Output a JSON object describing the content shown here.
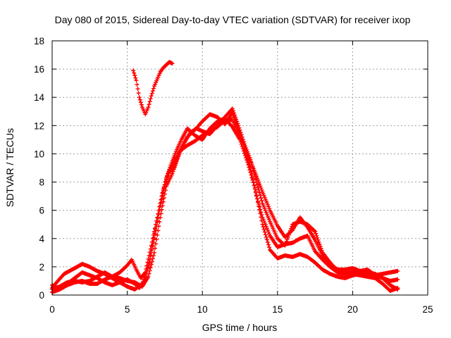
{
  "chart_data": {
    "type": "scatter",
    "title": "Day 080 of 2015, Sidereal Day-to-day VTEC variation (SDTVAR) for receiver ixop",
    "xlabel": "GPS time / hours",
    "ylabel": "SDTVAR / TECUs",
    "xlim": [
      0,
      25
    ],
    "ylim": [
      0,
      18
    ],
    "x_ticks": [
      0,
      5,
      10,
      15,
      20,
      25
    ],
    "y_ticks": [
      0,
      2,
      4,
      6,
      8,
      10,
      12,
      14,
      16,
      18
    ],
    "grid": true,
    "marker": "+",
    "series": [
      {
        "name": "track-1",
        "color": "#ff0000",
        "points": [
          [
            0.0,
            0.5
          ],
          [
            0.3,
            0.9
          ],
          [
            0.8,
            1.5
          ],
          [
            1.5,
            1.9
          ],
          [
            2.0,
            2.2
          ],
          [
            2.5,
            2.0
          ],
          [
            3.0,
            1.7
          ],
          [
            3.5,
            1.5
          ],
          [
            4.0,
            1.2
          ],
          [
            4.5,
            0.9
          ],
          [
            5.0,
            0.6
          ],
          [
            5.5,
            0.4
          ],
          [
            6.0,
            0.8
          ],
          [
            6.4,
            2.0
          ],
          [
            6.8,
            4.0
          ],
          [
            7.2,
            6.3
          ],
          [
            7.6,
            8.3
          ],
          [
            8.0,
            9.5
          ],
          [
            8.3,
            10.3
          ],
          [
            8.6,
            11.0
          ],
          [
            9.0,
            11.8
          ],
          [
            9.5,
            11.3
          ],
          [
            10.0,
            11.0
          ],
          [
            10.5,
            11.8
          ],
          [
            11.0,
            12.3
          ],
          [
            11.5,
            12.5
          ],
          [
            12.0,
            11.9
          ],
          [
            12.5,
            11.0
          ],
          [
            13.0,
            9.4
          ],
          [
            13.5,
            7.6
          ],
          [
            14.0,
            5.0
          ],
          [
            14.5,
            3.2
          ],
          [
            15.0,
            2.6
          ],
          [
            15.5,
            2.8
          ],
          [
            16.0,
            2.7
          ],
          [
            16.5,
            2.9
          ],
          [
            17.0,
            2.7
          ],
          [
            17.5,
            2.3
          ],
          [
            18.0,
            1.8
          ],
          [
            18.5,
            1.5
          ],
          [
            19.0,
            1.3
          ],
          [
            19.5,
            1.2
          ],
          [
            20.0,
            1.4
          ],
          [
            20.5,
            1.5
          ],
          [
            21.0,
            1.6
          ],
          [
            21.5,
            1.5
          ],
          [
            22.0,
            1.2
          ],
          [
            22.5,
            0.7
          ],
          [
            23.0,
            0.4
          ]
        ]
      },
      {
        "name": "track-2",
        "color": "#ff0000",
        "points": [
          [
            0.0,
            0.2
          ],
          [
            0.5,
            0.4
          ],
          [
            1.0,
            0.7
          ],
          [
            1.5,
            0.9
          ],
          [
            2.0,
            1.0
          ],
          [
            2.5,
            0.8
          ],
          [
            3.0,
            0.8
          ],
          [
            3.5,
            1.1
          ],
          [
            4.0,
            1.3
          ],
          [
            4.5,
            1.6
          ],
          [
            5.0,
            2.1
          ],
          [
            5.3,
            2.5
          ],
          [
            5.6,
            1.8
          ],
          [
            5.9,
            1.2
          ],
          [
            6.2,
            1.6
          ],
          [
            6.6,
            3.5
          ],
          [
            7.0,
            5.5
          ],
          [
            7.4,
            7.5
          ],
          [
            7.8,
            8.8
          ],
          [
            8.2,
            9.6
          ],
          [
            8.6,
            10.4
          ],
          [
            9.0,
            11.2
          ],
          [
            9.5,
            11.7
          ],
          [
            10.0,
            12.3
          ],
          [
            10.5,
            12.8
          ],
          [
            11.0,
            12.6
          ],
          [
            11.5,
            12.1
          ],
          [
            12.0,
            12.9
          ],
          [
            12.4,
            11.6
          ],
          [
            12.8,
            10.5
          ],
          [
            13.2,
            9.0
          ],
          [
            13.6,
            7.0
          ],
          [
            14.0,
            5.5
          ],
          [
            14.5,
            4.2
          ],
          [
            15.0,
            3.4
          ],
          [
            15.5,
            3.6
          ],
          [
            16.0,
            3.7
          ],
          [
            16.5,
            4.0
          ],
          [
            17.0,
            4.2
          ],
          [
            17.5,
            3.1
          ],
          [
            18.0,
            2.5
          ],
          [
            18.5,
            2.0
          ],
          [
            19.0,
            1.6
          ],
          [
            19.5,
            1.5
          ],
          [
            20.0,
            1.6
          ],
          [
            20.5,
            1.7
          ],
          [
            21.0,
            1.8
          ],
          [
            21.5,
            1.4
          ],
          [
            22.0,
            1.5
          ],
          [
            22.5,
            1.6
          ],
          [
            23.0,
            1.7
          ]
        ]
      },
      {
        "name": "track-3",
        "color": "#ff0000",
        "points": [
          [
            0.0,
            0.7
          ],
          [
            0.4,
            0.5
          ],
          [
            1.0,
            0.8
          ],
          [
            1.5,
            1.2
          ],
          [
            2.0,
            1.6
          ],
          [
            2.5,
            1.4
          ],
          [
            3.0,
            1.2
          ],
          [
            3.5,
            0.9
          ],
          [
            4.0,
            0.7
          ],
          [
            4.5,
            0.9
          ],
          [
            5.0,
            1.1
          ],
          [
            5.5,
            0.8
          ],
          [
            5.8,
            0.5
          ],
          [
            6.1,
            0.9
          ],
          [
            6.5,
            2.5
          ],
          [
            6.9,
            5.0
          ],
          [
            7.3,
            7.0
          ],
          [
            7.7,
            8.6
          ],
          [
            8.1,
            9.0
          ],
          [
            8.5,
            10.2
          ],
          [
            9.0,
            10.6
          ],
          [
            9.5,
            10.9
          ],
          [
            10.0,
            11.3
          ],
          [
            10.5,
            11.6
          ],
          [
            11.0,
            11.9
          ],
          [
            11.5,
            12.4
          ],
          [
            12.0,
            12.4
          ],
          [
            12.5,
            11.3
          ],
          [
            13.0,
            10.0
          ],
          [
            13.5,
            8.7
          ],
          [
            14.0,
            7.3
          ],
          [
            14.5,
            6.0
          ],
          [
            15.0,
            4.9
          ],
          [
            15.5,
            4.1
          ],
          [
            16.0,
            4.6
          ],
          [
            16.5,
            5.5
          ],
          [
            17.0,
            4.8
          ],
          [
            17.5,
            3.9
          ],
          [
            18.0,
            2.8
          ],
          [
            18.5,
            2.2
          ],
          [
            19.0,
            1.8
          ],
          [
            19.5,
            1.8
          ],
          [
            20.0,
            1.9
          ],
          [
            20.5,
            1.7
          ],
          [
            21.0,
            1.6
          ],
          [
            21.5,
            1.4
          ],
          [
            22.0,
            1.2
          ],
          [
            22.5,
            1.0
          ],
          [
            23.0,
            1.1
          ]
        ]
      },
      {
        "name": "track-4",
        "color": "#ff0000",
        "points": [
          [
            0.0,
            0.4
          ],
          [
            0.5,
            0.6
          ],
          [
            1.0,
            0.9
          ],
          [
            1.5,
            1.0
          ],
          [
            2.0,
            0.9
          ],
          [
            2.5,
            1.0
          ],
          [
            3.0,
            1.3
          ],
          [
            3.5,
            1.6
          ],
          [
            4.0,
            1.3
          ],
          [
            4.5,
            1.2
          ],
          [
            5.0,
            1.0
          ],
          [
            5.5,
            0.9
          ],
          [
            6.0,
            0.6
          ],
          [
            6.4,
            1.3
          ],
          [
            6.8,
            3.0
          ],
          [
            7.2,
            5.5
          ],
          [
            7.6,
            7.7
          ],
          [
            8.0,
            8.6
          ],
          [
            8.4,
            9.8
          ],
          [
            8.8,
            10.8
          ],
          [
            9.2,
            11.5
          ],
          [
            9.6,
            11.8
          ],
          [
            10.0,
            11.6
          ],
          [
            10.5,
            11.4
          ],
          [
            11.0,
            12.0
          ],
          [
            11.5,
            12.6
          ],
          [
            12.0,
            13.2
          ],
          [
            12.4,
            12.0
          ],
          [
            12.8,
            10.7
          ],
          [
            13.2,
            9.6
          ],
          [
            13.6,
            8.0
          ],
          [
            14.0,
            6.5
          ],
          [
            14.5,
            5.2
          ],
          [
            15.0,
            4.0
          ],
          [
            15.5,
            3.5
          ],
          [
            16.0,
            5.0
          ],
          [
            16.5,
            5.2
          ],
          [
            17.0,
            5.0
          ],
          [
            17.5,
            4.5
          ],
          [
            18.0,
            3.0
          ],
          [
            18.5,
            2.3
          ],
          [
            19.0,
            1.7
          ],
          [
            19.5,
            1.6
          ],
          [
            20.0,
            1.5
          ],
          [
            20.5,
            1.4
          ],
          [
            21.0,
            1.3
          ],
          [
            21.5,
            1.2
          ],
          [
            22.0,
            0.8
          ],
          [
            22.5,
            0.3
          ],
          [
            23.0,
            0.5
          ]
        ]
      },
      {
        "name": "track-5",
        "color": "#ff0000",
        "points": [
          [
            5.4,
            15.9
          ],
          [
            5.6,
            15.2
          ],
          [
            5.8,
            14.0
          ],
          [
            6.0,
            13.3
          ],
          [
            6.2,
            12.8
          ],
          [
            6.4,
            13.3
          ],
          [
            6.6,
            14.1
          ],
          [
            6.8,
            14.8
          ],
          [
            7.0,
            15.3
          ],
          [
            7.2,
            15.8
          ],
          [
            7.4,
            16.1
          ],
          [
            7.6,
            16.3
          ],
          [
            7.8,
            16.5
          ],
          [
            8.0,
            16.4
          ]
        ]
      }
    ]
  }
}
